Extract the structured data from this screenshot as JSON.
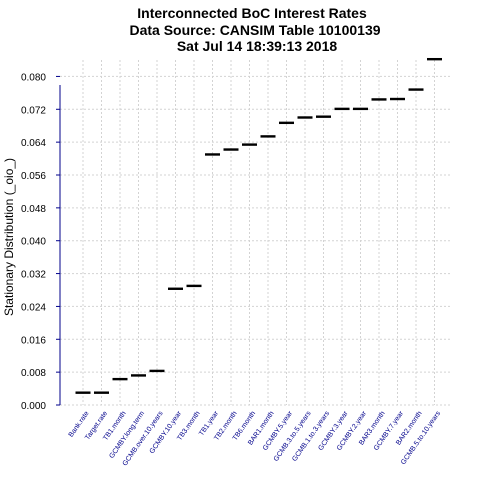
{
  "chart_data": {
    "type": "box",
    "title": "Interconnected BoC Interest Rates",
    "subtitle1": "Data Source: CANSIM Table 10100139",
    "subtitle2": "Sat Jul 14 18:39:13 2018",
    "ylabel": "Stationary Distribution (_oio_)",
    "xlabel": "",
    "ylim": [
      0,
      0.084
    ],
    "yticks": [
      "0.000",
      "0.008",
      "0.016",
      "0.024",
      "0.032",
      "0.040",
      "0.048",
      "0.056",
      "0.064",
      "0.072",
      "0.080"
    ],
    "grid": true,
    "categories": [
      "Bank.rate",
      "Target.rate",
      "TB1.month",
      "GCMBY.long.term",
      "GCMB.over.10.years",
      "GCMBY.10.year",
      "TB3.month",
      "TB1.year",
      "TB2.month",
      "TB6.month",
      "BAR1.month",
      "GCMBY.5.year",
      "GCMB.3.to.5.years",
      "GCMB.1.to.3.years",
      "GCMBY.3.year",
      "GCMBY.2.year",
      "BAR3.month",
      "GCMBY.7.year",
      "BAR2.month",
      "GCMB.5.to.10.years"
    ],
    "values": [
      0.003,
      0.003,
      0.0063,
      0.0072,
      0.0083,
      0.0283,
      0.029,
      0.061,
      0.0622,
      0.0634,
      0.0654,
      0.0687,
      0.07,
      0.0702,
      0.0721,
      0.0721,
      0.0744,
      0.0745,
      0.0768,
      0.0842
    ]
  }
}
